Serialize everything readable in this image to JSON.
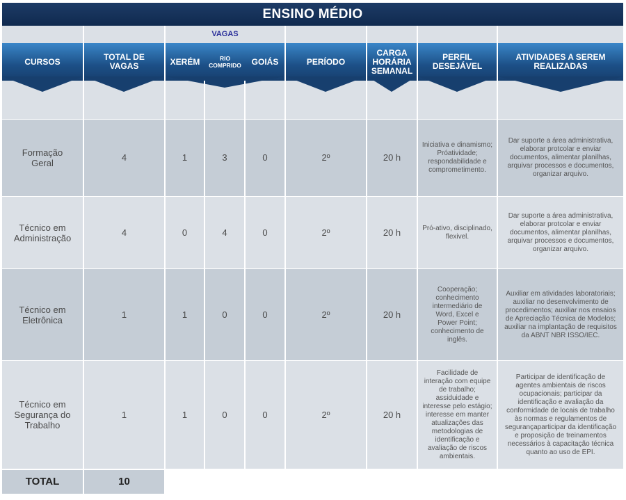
{
  "title": "ENSINO MÉDIO",
  "vagas_label": "VAGAS",
  "headers": {
    "cursos": "CURSOS",
    "total": "TOTAL DE VAGAS",
    "xerem": "XERÉM",
    "rio": "RIO COMPRIDO",
    "goias": "GOIÁS",
    "periodo": "PERÍODO",
    "carga": "CARGA HORÁRIA SEMANAL",
    "perfil": "PERFIL DESEJÁVEL",
    "atividades": "ATIVIDADES A SEREM REALIZADAS"
  },
  "rows": [
    {
      "curso": "Formação Geral",
      "total": "4",
      "xerem": "1",
      "rio": "3",
      "goias": "0",
      "periodo": "2º",
      "carga": "20 h",
      "perfil": "Iniciativa e dinamismo; Próatividade; respondabilidade e comprometimento.",
      "atividades": "Dar suporte a área administrativa, elaborar protcolar e enviar documentos, alimentar planilhas, arquivar processos e documentos, organizar arquivo."
    },
    {
      "curso": "Técnico em Administração",
      "total": "4",
      "xerem": "0",
      "rio": "4",
      "goias": "0",
      "periodo": "2º",
      "carga": "20 h",
      "perfil": "Pró-ativo, disciplinado, flexivel.",
      "atividades": "Dar suporte a área administrativa, elaborar protcolar e enviar documentos, alimentar planilhas, arquivar processos e documentos, organizar arquivo."
    },
    {
      "curso": "Técnico em Eletrônica",
      "total": "1",
      "xerem": "1",
      "rio": "0",
      "goias": "0",
      "periodo": "2º",
      "carga": "20 h",
      "perfil": "Cooperação; conhecimento intermediário de Word, Excel e Power Point; conhecimento de inglês.",
      "atividades": "Auxiliar em atividades laboratoriais; auxiliar no desenvolvimento de procedimentos; auxiliar nos ensaios de Apreciação Técnica de Modelos; auxiliar na implantação de requisitos da ABNT NBR ISSO/IEC."
    },
    {
      "curso": "Técnico em Segurança do Trabalho",
      "total": "1",
      "xerem": "1",
      "rio": "0",
      "goias": "0",
      "periodo": "2º",
      "carga": "20 h",
      "perfil": "Facilidade de interação com equipe de trabalho; assiduidade e interesse pelo estágio; interesse em manter atualizações das metodologias de identificação e avaliação de riscos ambientais.",
      "atividades": "Participar de identificação de agentes ambientais de riscos ocupacionais; participar da identificação e avaliação da conformidade de locais de trabalho às normas e regulamentos de segurançaparticipar da identificação e proposição de treinamentos necessários à capacitação técnica quanto ao uso de EPI."
    }
  ],
  "total_label": "TOTAL",
  "total_value": "10"
}
